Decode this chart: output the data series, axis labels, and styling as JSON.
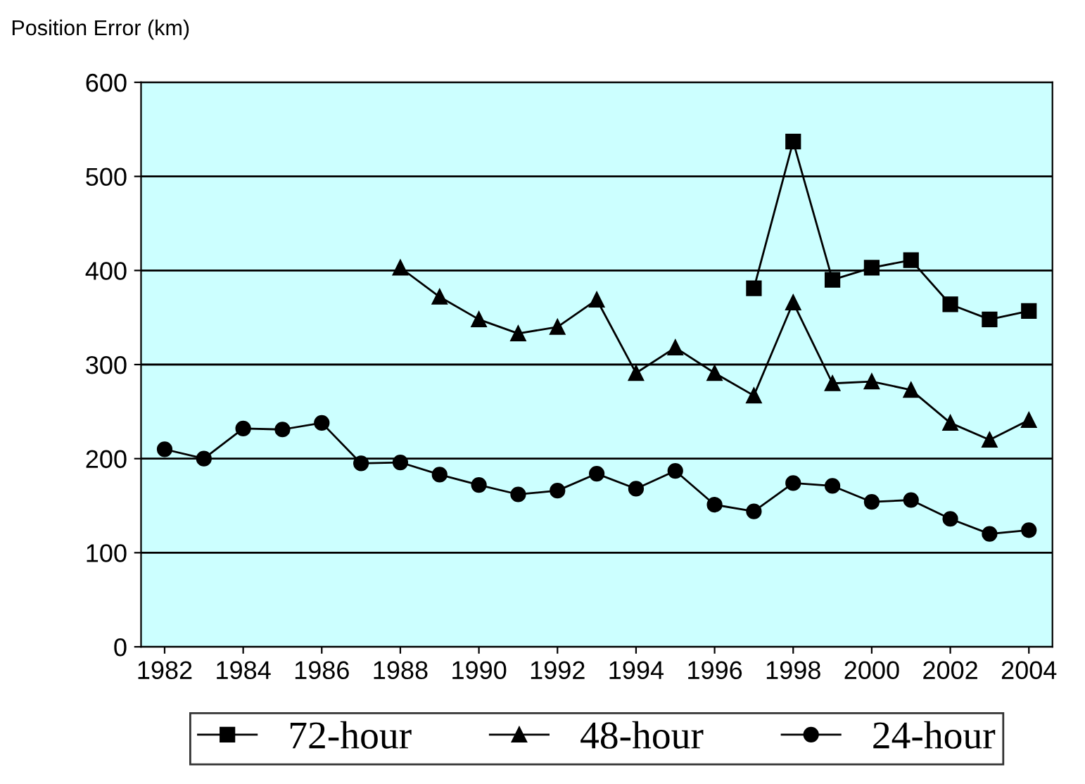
{
  "chart_data": {
    "type": "line",
    "ylabel": "Position Error (km)",
    "xlim": [
      1981.4,
      2004.6
    ],
    "xticks": [
      1982,
      1984,
      1986,
      1988,
      1990,
      1992,
      1994,
      1996,
      1998,
      2000,
      2002,
      2004
    ],
    "ylim": [
      0,
      600
    ],
    "yticks": [
      0,
      100,
      200,
      300,
      400,
      500,
      600
    ],
    "grid": "y",
    "legend": "bottom",
    "series": [
      {
        "name": "72-hour",
        "color": "#000000",
        "marker": "square",
        "x": [
          1997,
          1998,
          1999,
          2000,
          2001,
          2002,
          2003,
          2004
        ],
        "values": [
          381,
          537,
          390,
          403,
          411,
          364,
          348,
          357
        ]
      },
      {
        "name": "48-hour",
        "color": "#000000",
        "marker": "triangle",
        "x": [
          1988,
          1989,
          1990,
          1991,
          1992,
          1993,
          1994,
          1995,
          1996,
          1997,
          1998,
          1999,
          2000,
          2001,
          2002,
          2003,
          2004
        ],
        "values": [
          403,
          372,
          348,
          333,
          340,
          369,
          291,
          318,
          291,
          267,
          366,
          280,
          282,
          273,
          238,
          220,
          241
        ]
      },
      {
        "name": "24-hour",
        "color": "#000000",
        "marker": "circle",
        "x": [
          1982,
          1983,
          1984,
          1985,
          1986,
          1987,
          1988,
          1989,
          1990,
          1991,
          1992,
          1993,
          1994,
          1995,
          1996,
          1997,
          1998,
          1999,
          2000,
          2001,
          2002,
          2003,
          2004
        ],
        "values": [
          210,
          200,
          232,
          231,
          238,
          195,
          196,
          183,
          172,
          162,
          166,
          184,
          168,
          187,
          151,
          144,
          174,
          171,
          154,
          156,
          136,
          120,
          124
        ]
      }
    ]
  }
}
